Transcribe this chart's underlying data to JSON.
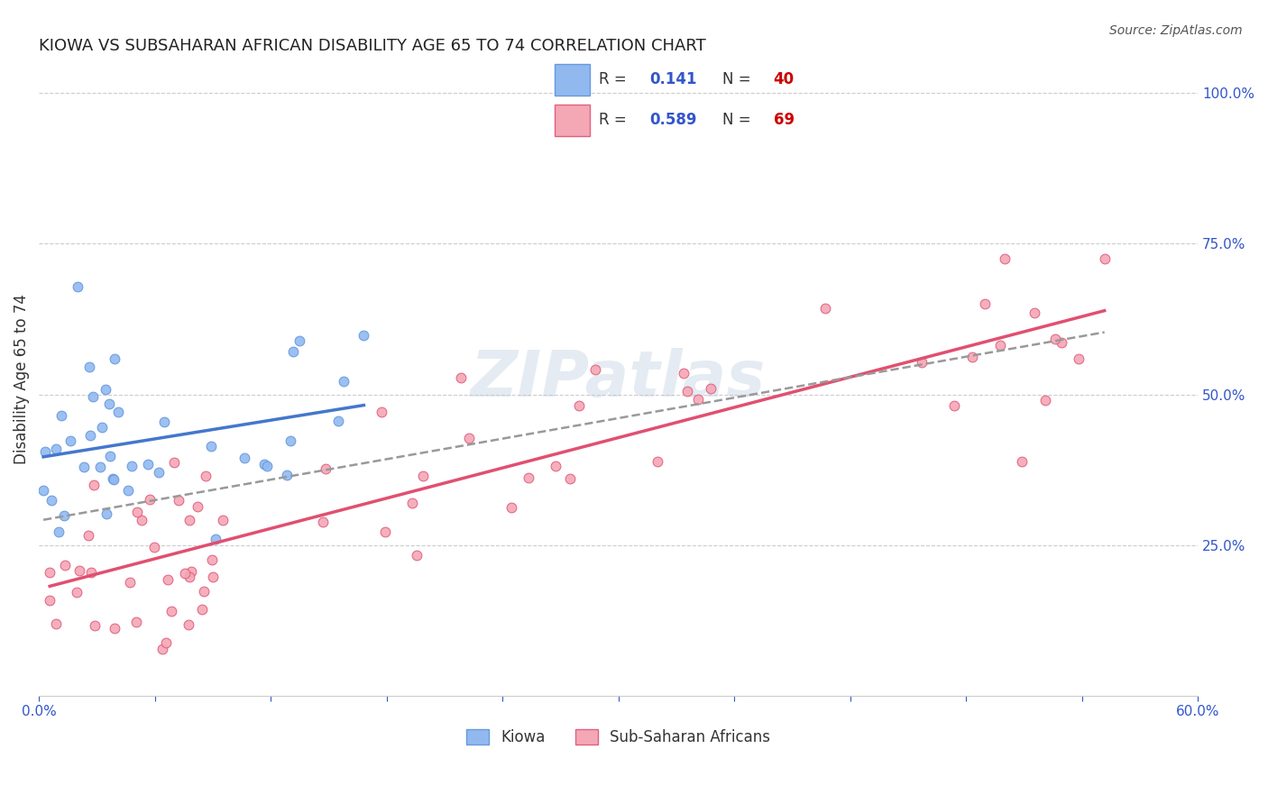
{
  "title": "KIOWA VS SUBSAHARAN AFRICAN DISABILITY AGE 65 TO 74 CORRELATION CHART",
  "source": "Source: ZipAtlas.com",
  "ylabel": "Disability Age 65 to 74",
  "xlim": [
    0.0,
    0.6
  ],
  "ylim": [
    0.0,
    1.05
  ],
  "yticks_right": [
    0.25,
    0.5,
    0.75,
    1.0
  ],
  "ytick_labels_right": [
    "25.0%",
    "50.0%",
    "75.0%",
    "100.0%"
  ],
  "kiowa_color": "#91b9f0",
  "kiowa_edge_color": "#6699dd",
  "subsaharan_color": "#f4a7b5",
  "subsaharan_edge_color": "#e06080",
  "kiowa_R": 0.141,
  "kiowa_N": 40,
  "subsaharan_R": 0.589,
  "subsaharan_N": 69,
  "legend_R_color": "#3355cc",
  "legend_N_color": "#cc0000",
  "watermark": "ZIPatlas",
  "background_color": "#ffffff",
  "trend_blue": "#4477cc",
  "trend_pink": "#e05070",
  "trend_dash": "#999999"
}
